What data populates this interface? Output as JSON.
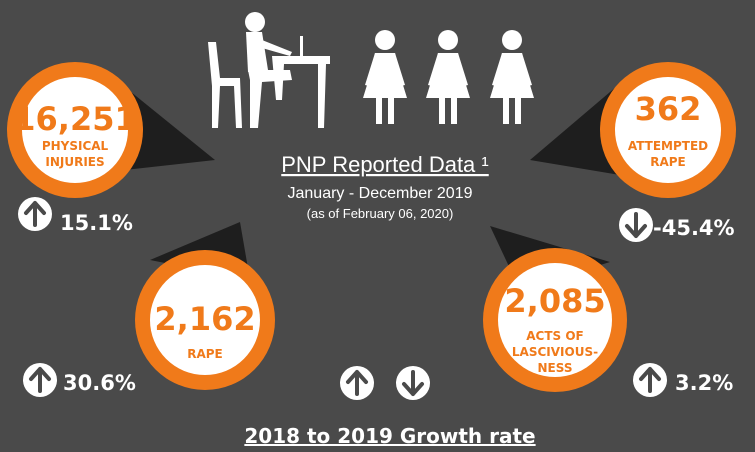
{
  "header": {
    "title": "PNP Reported Data ¹",
    "period": "January - December 2019",
    "note": "(as of February 06, 2020)"
  },
  "stats": [
    {
      "value": "16,251",
      "label": [
        "PHYSICAL",
        "INJURIES"
      ],
      "growth": "15.1%"
    },
    {
      "value": "362",
      "label": [
        "ATTEMPTED",
        "RAPE"
      ],
      "growth": "-45.4%"
    },
    {
      "value": "2,162",
      "label": [
        "RAPE"
      ],
      "growth": "30.6%"
    },
    {
      "value": "2,085",
      "label": [
        "ACTS OF",
        "LASCIVIOUS-",
        "NESS"
      ],
      "growth": "3.2%"
    }
  ],
  "footer": {
    "legend": "2018 to 2019 Growth rate"
  }
}
